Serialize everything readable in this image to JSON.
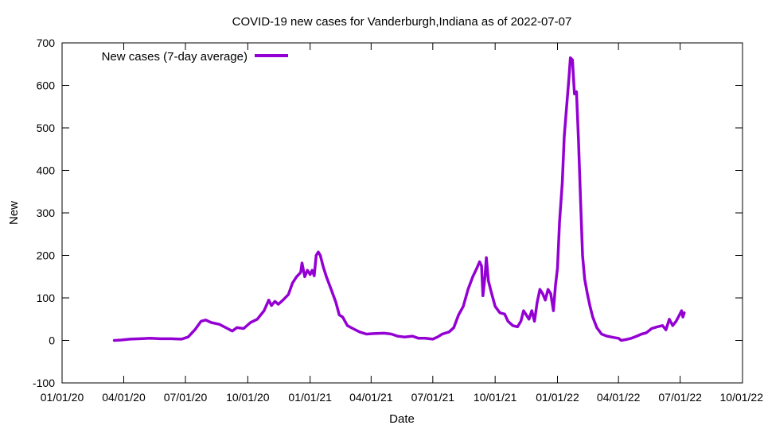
{
  "chart_data": {
    "type": "line",
    "title": "COVID-19 new cases for Vanderburgh,Indiana as of 2022-07-07",
    "xlabel": "Date",
    "ylabel": "New",
    "xlim": [
      "2020-01-01",
      "2022-10-01"
    ],
    "ylim": [
      -100,
      700
    ],
    "x_ticks": [
      "01/01/20",
      "04/01/20",
      "07/01/20",
      "10/01/20",
      "01/01/21",
      "04/01/21",
      "07/01/21",
      "10/01/21",
      "01/01/22",
      "04/01/22",
      "07/01/22",
      "10/01/22"
    ],
    "x_tick_dates": [
      "2020-01-01",
      "2020-04-01",
      "2020-07-01",
      "2020-10-01",
      "2021-01-01",
      "2021-04-01",
      "2021-07-01",
      "2021-10-01",
      "2022-01-01",
      "2022-04-01",
      "2022-07-01",
      "2022-10-01"
    ],
    "y_ticks": [
      -100,
      0,
      100,
      200,
      300,
      400,
      500,
      600,
      700
    ],
    "grid": false,
    "legend_position": "top-left",
    "series": [
      {
        "name": "New cases (7-day average)",
        "color": "#9400d3",
        "points": [
          [
            "2020-03-18",
            0
          ],
          [
            "2020-03-28",
            1
          ],
          [
            "2020-04-10",
            3
          ],
          [
            "2020-04-25",
            4
          ],
          [
            "2020-05-10",
            5
          ],
          [
            "2020-05-25",
            4
          ],
          [
            "2020-06-10",
            4
          ],
          [
            "2020-06-25",
            3
          ],
          [
            "2020-07-05",
            8
          ],
          [
            "2020-07-15",
            25
          ],
          [
            "2020-07-24",
            45
          ],
          [
            "2020-07-31",
            48
          ],
          [
            "2020-08-08",
            42
          ],
          [
            "2020-08-20",
            38
          ],
          [
            "2020-09-01",
            28
          ],
          [
            "2020-09-08",
            22
          ],
          [
            "2020-09-15",
            30
          ],
          [
            "2020-09-25",
            28
          ],
          [
            "2020-10-05",
            42
          ],
          [
            "2020-10-15",
            50
          ],
          [
            "2020-10-25",
            70
          ],
          [
            "2020-11-01",
            95
          ],
          [
            "2020-11-05",
            82
          ],
          [
            "2020-11-10",
            92
          ],
          [
            "2020-11-15",
            85
          ],
          [
            "2020-11-22",
            95
          ],
          [
            "2020-11-30",
            108
          ],
          [
            "2020-12-06",
            135
          ],
          [
            "2020-12-12",
            150
          ],
          [
            "2020-12-18",
            160
          ],
          [
            "2020-12-20",
            182
          ],
          [
            "2020-12-24",
            150
          ],
          [
            "2020-12-28",
            165
          ],
          [
            "2021-01-01",
            155
          ],
          [
            "2021-01-04",
            165
          ],
          [
            "2021-01-07",
            152
          ],
          [
            "2021-01-10",
            200
          ],
          [
            "2021-01-13",
            208
          ],
          [
            "2021-01-16",
            200
          ],
          [
            "2021-01-20",
            175
          ],
          [
            "2021-01-25",
            150
          ],
          [
            "2021-02-01",
            120
          ],
          [
            "2021-02-08",
            90
          ],
          [
            "2021-02-13",
            60
          ],
          [
            "2021-02-18",
            55
          ],
          [
            "2021-02-25",
            35
          ],
          [
            "2021-03-05",
            28
          ],
          [
            "2021-03-15",
            20
          ],
          [
            "2021-03-25",
            15
          ],
          [
            "2021-04-05",
            16
          ],
          [
            "2021-04-20",
            17
          ],
          [
            "2021-05-01",
            15
          ],
          [
            "2021-05-10",
            10
          ],
          [
            "2021-05-20",
            8
          ],
          [
            "2021-06-01",
            10
          ],
          [
            "2021-06-10",
            5
          ],
          [
            "2021-06-20",
            5
          ],
          [
            "2021-07-01",
            3
          ],
          [
            "2021-07-08",
            8
          ],
          [
            "2021-07-15",
            15
          ],
          [
            "2021-07-25",
            20
          ],
          [
            "2021-08-01",
            30
          ],
          [
            "2021-08-08",
            60
          ],
          [
            "2021-08-15",
            80
          ],
          [
            "2021-08-22",
            120
          ],
          [
            "2021-08-29",
            150
          ],
          [
            "2021-09-04",
            170
          ],
          [
            "2021-09-08",
            185
          ],
          [
            "2021-09-11",
            175
          ],
          [
            "2021-09-13",
            105
          ],
          [
            "2021-09-16",
            150
          ],
          [
            "2021-09-18",
            195
          ],
          [
            "2021-09-21",
            140
          ],
          [
            "2021-09-25",
            115
          ],
          [
            "2021-10-01",
            80
          ],
          [
            "2021-10-08",
            65
          ],
          [
            "2021-10-15",
            62
          ],
          [
            "2021-10-20",
            45
          ],
          [
            "2021-10-27",
            35
          ],
          [
            "2021-11-03",
            32
          ],
          [
            "2021-11-08",
            45
          ],
          [
            "2021-11-12",
            70
          ],
          [
            "2021-11-16",
            60
          ],
          [
            "2021-11-20",
            50
          ],
          [
            "2021-11-24",
            70
          ],
          [
            "2021-11-28",
            45
          ],
          [
            "2021-12-02",
            90
          ],
          [
            "2021-12-06",
            120
          ],
          [
            "2021-12-10",
            110
          ],
          [
            "2021-12-14",
            95
          ],
          [
            "2021-12-18",
            120
          ],
          [
            "2021-12-22",
            110
          ],
          [
            "2021-12-26",
            70
          ],
          [
            "2021-12-29",
            130
          ],
          [
            "2022-01-01",
            170
          ],
          [
            "2022-01-04",
            280
          ],
          [
            "2022-01-08",
            370
          ],
          [
            "2022-01-11",
            480
          ],
          [
            "2022-01-15",
            560
          ],
          [
            "2022-01-18",
            620
          ],
          [
            "2022-01-20",
            665
          ],
          [
            "2022-01-23",
            660
          ],
          [
            "2022-01-26",
            580
          ],
          [
            "2022-01-29",
            585
          ],
          [
            "2022-02-01",
            470
          ],
          [
            "2022-02-04",
            330
          ],
          [
            "2022-02-07",
            200
          ],
          [
            "2022-02-10",
            145
          ],
          [
            "2022-02-14",
            110
          ],
          [
            "2022-02-18",
            80
          ],
          [
            "2022-02-22",
            55
          ],
          [
            "2022-02-28",
            30
          ],
          [
            "2022-03-07",
            15
          ],
          [
            "2022-03-15",
            10
          ],
          [
            "2022-03-25",
            7
          ],
          [
            "2022-04-01",
            5
          ],
          [
            "2022-04-05",
            0
          ],
          [
            "2022-04-12",
            2
          ],
          [
            "2022-04-20",
            5
          ],
          [
            "2022-04-28",
            10
          ],
          [
            "2022-05-05",
            15
          ],
          [
            "2022-05-12",
            18
          ],
          [
            "2022-05-20",
            28
          ],
          [
            "2022-05-28",
            32
          ],
          [
            "2022-06-05",
            35
          ],
          [
            "2022-06-10",
            25
          ],
          [
            "2022-06-15",
            50
          ],
          [
            "2022-06-20",
            35
          ],
          [
            "2022-06-25",
            45
          ],
          [
            "2022-06-30",
            60
          ],
          [
            "2022-07-03",
            70
          ],
          [
            "2022-07-05",
            55
          ],
          [
            "2022-07-07",
            65
          ]
        ]
      }
    ]
  }
}
